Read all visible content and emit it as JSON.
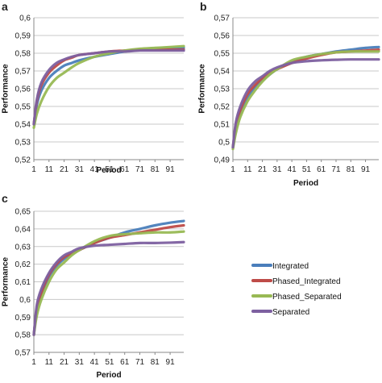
{
  "panels_meta": {
    "label_a": "a",
    "label_b": "b",
    "label_c": "c"
  },
  "legend": {
    "items": [
      {
        "label": "Integrated",
        "color": "#4a7ebb"
      },
      {
        "label": "Phased_Integrated",
        "color": "#be4b48"
      },
      {
        "label": "Phased_Separated",
        "color": "#98b954"
      },
      {
        "label": "Separated",
        "color": "#7d60a0"
      }
    ]
  },
  "chart_data": [
    {
      "type": "line",
      "panel": "a",
      "xlabel": "Period",
      "ylabel": "Performance",
      "xlim": [
        1,
        100
      ],
      "ylim": [
        0.52,
        0.6
      ],
      "yticks": [
        "0,52",
        "0,53",
        "0,54",
        "0,55",
        "0,56",
        "0,57",
        "0,58",
        "0,59",
        "0,6"
      ],
      "xticks": [
        "1",
        "11",
        "21",
        "31",
        "41",
        "51",
        "61",
        "71",
        "81",
        "91"
      ],
      "grid": true,
      "x": [
        1,
        3,
        6,
        11,
        16,
        21,
        26,
        31,
        41,
        51,
        61,
        71,
        81,
        91,
        100
      ],
      "series": [
        {
          "name": "Integrated",
          "color": "#4a7ebb",
          "values": [
            0.54,
            0.551,
            0.559,
            0.566,
            0.57,
            0.573,
            0.5745,
            0.576,
            0.578,
            0.5795,
            0.581,
            0.582,
            0.5825,
            0.583,
            0.583
          ]
        },
        {
          "name": "Phased_Integrated",
          "color": "#be4b48",
          "values": [
            0.54,
            0.553,
            0.562,
            0.569,
            0.573,
            0.576,
            0.5775,
            0.579,
            0.58,
            0.581,
            0.5815,
            0.582,
            0.582,
            0.582,
            0.582
          ]
        },
        {
          "name": "Phased_Separated",
          "color": "#98b954",
          "values": [
            0.538,
            0.546,
            0.553,
            0.561,
            0.566,
            0.569,
            0.572,
            0.5745,
            0.578,
            0.58,
            0.5815,
            0.5825,
            0.583,
            0.5835,
            0.584
          ]
        },
        {
          "name": "Separated",
          "color": "#7d60a0",
          "values": [
            0.54,
            0.554,
            0.5635,
            0.5705,
            0.5745,
            0.5765,
            0.578,
            0.579,
            0.58,
            0.581,
            0.581,
            0.5815,
            0.5815,
            0.5815,
            0.5815
          ]
        }
      ]
    },
    {
      "type": "line",
      "panel": "b",
      "xlabel": "Period",
      "ylabel": "Performance",
      "xlim": [
        1,
        100
      ],
      "ylim": [
        0.49,
        0.57
      ],
      "yticks": [
        "0,49",
        "0,5",
        "0,51",
        "0,52",
        "0,53",
        "0,54",
        "0,55",
        "0,56",
        "0,57"
      ],
      "xticks": [
        "1",
        "11",
        "21",
        "31",
        "41",
        "51",
        "61",
        "71",
        "81",
        "91"
      ],
      "grid": true,
      "x": [
        1,
        3,
        6,
        11,
        16,
        21,
        26,
        31,
        41,
        51,
        61,
        71,
        81,
        91,
        100
      ],
      "series": [
        {
          "name": "Integrated",
          "color": "#4a7ebb",
          "values": [
            0.497,
            0.507,
            0.516,
            0.525,
            0.531,
            0.535,
            0.538,
            0.541,
            0.545,
            0.548,
            0.5495,
            0.551,
            0.552,
            0.553,
            0.5535
          ]
        },
        {
          "name": "Phased_Integrated",
          "color": "#be4b48",
          "values": [
            0.497,
            0.509,
            0.518,
            0.527,
            0.532,
            0.536,
            0.539,
            0.541,
            0.5445,
            0.547,
            0.549,
            0.5505,
            0.551,
            0.5515,
            0.552
          ]
        },
        {
          "name": "Phased_Separated",
          "color": "#98b954",
          "values": [
            0.496,
            0.505,
            0.514,
            0.523,
            0.529,
            0.534,
            0.538,
            0.541,
            0.546,
            0.548,
            0.5495,
            0.5505,
            0.551,
            0.551,
            0.551
          ]
        },
        {
          "name": "Separated",
          "color": "#7d60a0",
          "values": [
            0.497,
            0.511,
            0.52,
            0.529,
            0.534,
            0.537,
            0.54,
            0.542,
            0.5445,
            0.5455,
            0.546,
            0.5463,
            0.5465,
            0.5465,
            0.5465
          ]
        }
      ]
    },
    {
      "type": "line",
      "panel": "c",
      "xlabel": "Period",
      "ylabel": "Performance",
      "xlim": [
        1,
        100
      ],
      "ylim": [
        0.57,
        0.65
      ],
      "yticks": [
        "0,57",
        "0,58",
        "0,59",
        "0,6",
        "0,61",
        "0,62",
        "0,63",
        "0,64",
        "0,65"
      ],
      "xticks": [
        "1",
        "11",
        "21",
        "31",
        "41",
        "51",
        "61",
        "71",
        "81",
        "91"
      ],
      "grid": true,
      "x": [
        1,
        3,
        6,
        11,
        16,
        21,
        26,
        31,
        41,
        51,
        61,
        71,
        81,
        91,
        100
      ],
      "series": [
        {
          "name": "Integrated",
          "color": "#4a7ebb",
          "values": [
            0.58,
            0.594,
            0.603,
            0.613,
            0.619,
            0.623,
            0.626,
            0.628,
            0.632,
            0.635,
            0.638,
            0.64,
            0.642,
            0.6435,
            0.6445
          ]
        },
        {
          "name": "Phased_Integrated",
          "color": "#be4b48",
          "values": [
            0.58,
            0.595,
            0.604,
            0.614,
            0.62,
            0.624,
            0.626,
            0.628,
            0.632,
            0.635,
            0.6365,
            0.638,
            0.6395,
            0.641,
            0.642
          ]
        },
        {
          "name": "Phased_Separated",
          "color": "#98b954",
          "values": [
            0.58,
            0.591,
            0.6,
            0.61,
            0.617,
            0.621,
            0.625,
            0.628,
            0.633,
            0.636,
            0.637,
            0.6375,
            0.638,
            0.638,
            0.6385
          ]
        },
        {
          "name": "Separated",
          "color": "#7d60a0",
          "values": [
            0.58,
            0.597,
            0.606,
            0.615,
            0.621,
            0.625,
            0.627,
            0.629,
            0.6305,
            0.631,
            0.6315,
            0.632,
            0.632,
            0.6322,
            0.6325
          ]
        }
      ]
    }
  ]
}
